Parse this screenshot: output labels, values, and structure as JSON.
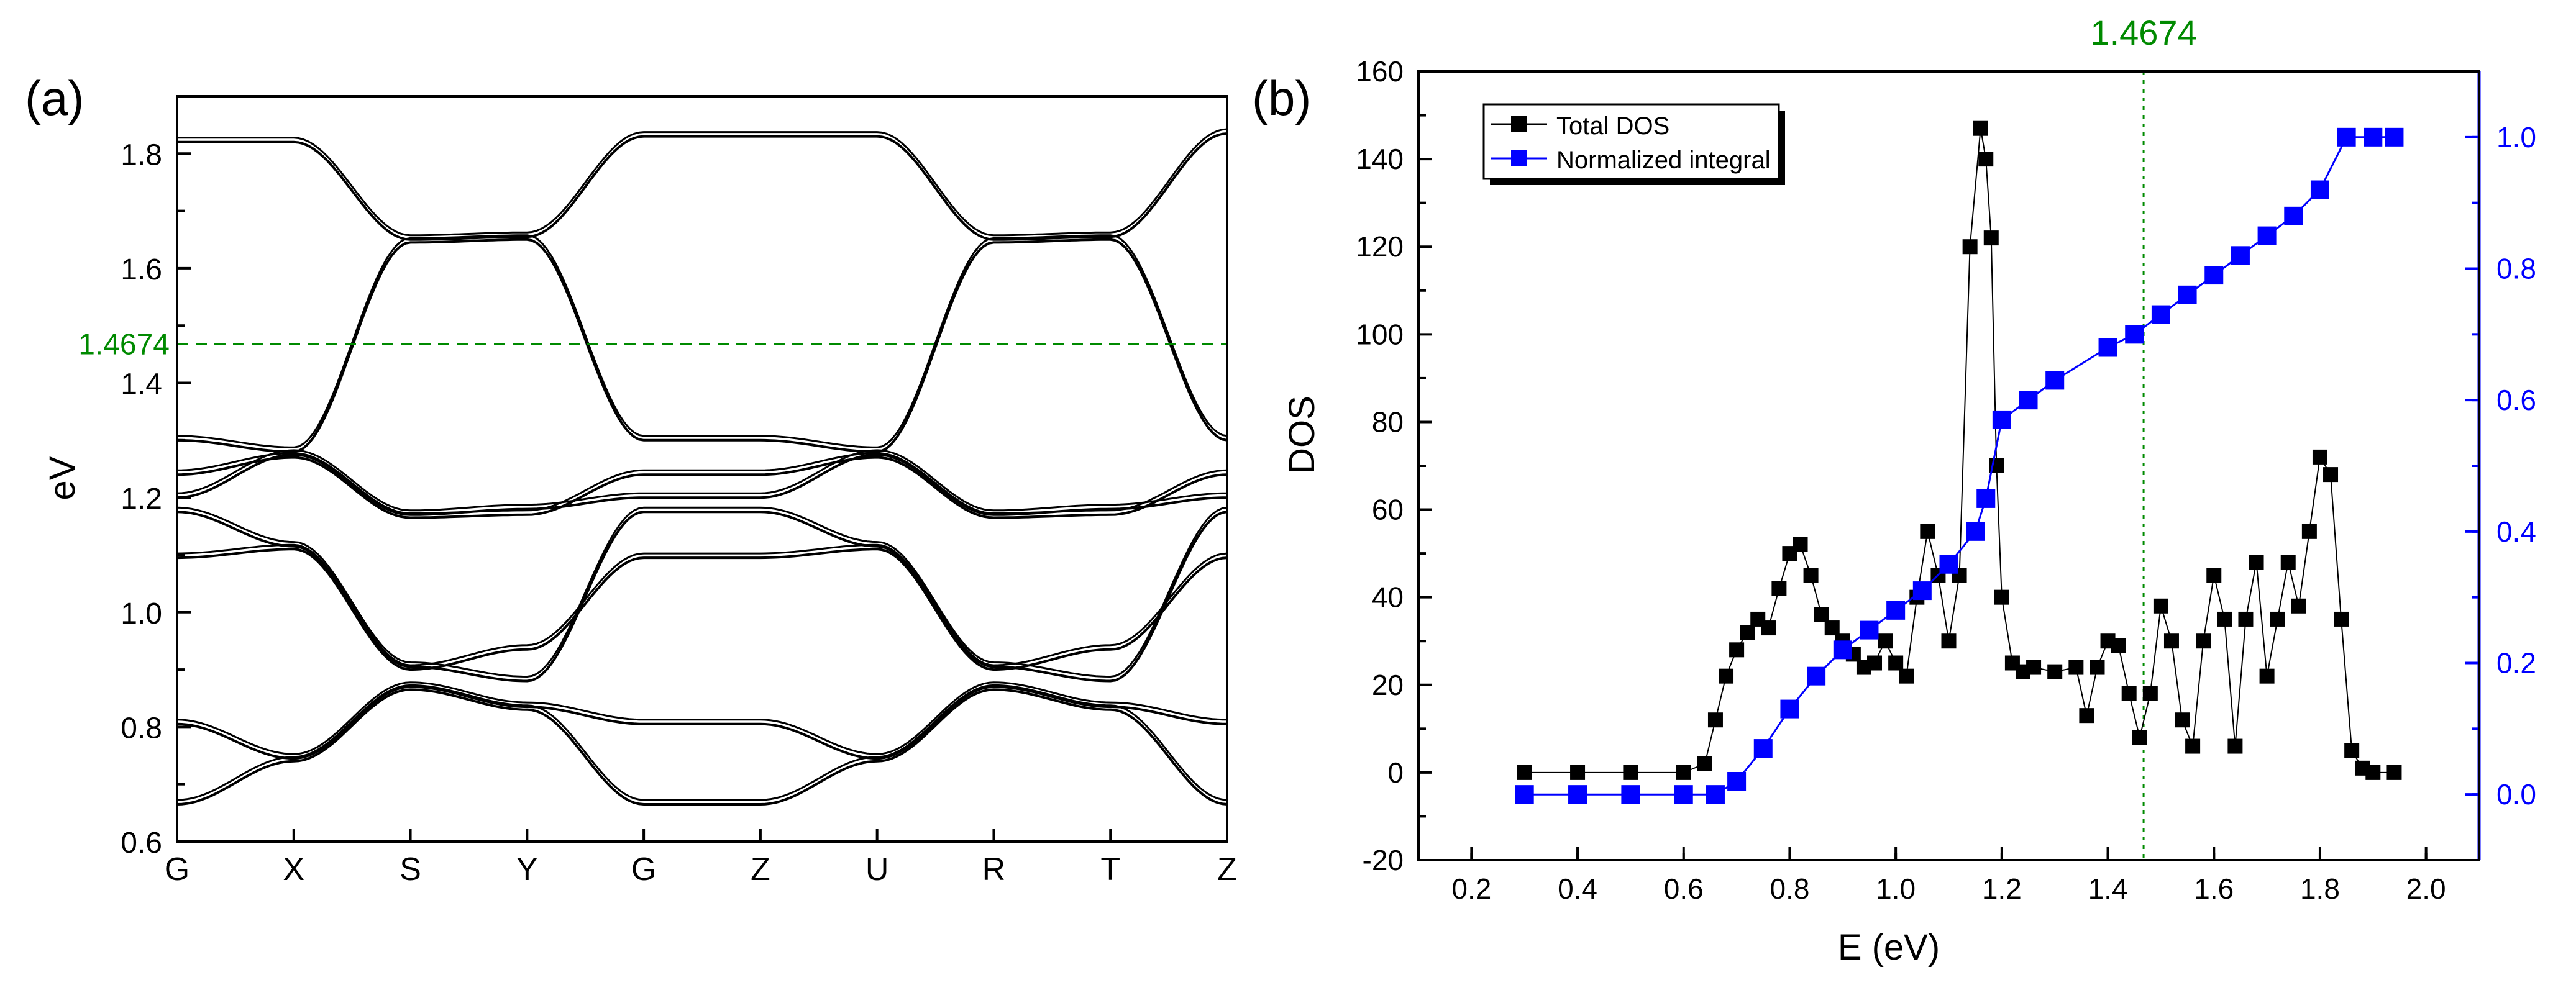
{
  "colors": {
    "axis": "#000000",
    "bands": "#000000",
    "total_dos": "#000000",
    "integral": "#0000ff",
    "fermi": "#008a00"
  },
  "chart_data": [
    {
      "panel_label": "(a)",
      "type": "line",
      "title": "",
      "xlabel": "",
      "ylabel": "eV",
      "x_ticks": [
        "G",
        "X",
        "S",
        "Y",
        "G",
        "Z",
        "U",
        "R",
        "T",
        "Z"
      ],
      "ylim": [
        0.6,
        1.9
      ],
      "y_ticks": [
        "0.6",
        "0.8",
        "1.0",
        "1.2",
        "1.4",
        "1.6",
        "1.8"
      ],
      "reference_line": {
        "label": "1.4674",
        "value": 1.4674,
        "style": "dashed"
      },
      "series": [
        {
          "name": "band 1",
          "values": [
            0.665,
            0.74,
            0.865,
            0.83,
            0.665,
            0.665,
            0.74,
            0.865,
            0.83,
            0.665
          ]
        },
        {
          "name": "band 2",
          "values": [
            0.805,
            0.745,
            0.87,
            0.835,
            0.805,
            0.805,
            0.745,
            0.87,
            0.835,
            0.805
          ]
        },
        {
          "name": "band 3",
          "values": [
            1.095,
            1.11,
            0.9,
            0.935,
            1.095,
            1.095,
            1.11,
            0.9,
            0.935,
            1.095
          ]
        },
        {
          "name": "band 4",
          "values": [
            1.175,
            1.115,
            0.905,
            0.88,
            1.175,
            1.175,
            1.115,
            0.905,
            0.88,
            1.175
          ]
        },
        {
          "name": "band 5",
          "values": [
            1.2,
            1.275,
            1.17,
            1.18,
            1.2,
            1.2,
            1.275,
            1.17,
            1.18,
            1.2
          ]
        },
        {
          "name": "band 6",
          "values": [
            1.24,
            1.27,
            1.165,
            1.17,
            1.24,
            1.24,
            1.27,
            1.165,
            1.17,
            1.24
          ]
        },
        {
          "name": "band 7",
          "values": [
            1.3,
            1.28,
            1.645,
            1.65,
            1.3,
            1.3,
            1.28,
            1.645,
            1.65,
            1.3
          ]
        },
        {
          "name": "band 8",
          "values": [
            1.82,
            1.82,
            1.65,
            1.655,
            1.83,
            1.83,
            1.83,
            1.65,
            1.655,
            1.835
          ]
        }
      ]
    },
    {
      "panel_label": "(b)",
      "type": "scatter",
      "title": "",
      "xlabel": "E (eV)",
      "ylabel": "DOS",
      "xlim": [
        0.1,
        2.1
      ],
      "x_ticks": [
        "0.2",
        "0.4",
        "0.6",
        "0.8",
        "1.0",
        "1.2",
        "1.4",
        "1.6",
        "1.8",
        "2.0"
      ],
      "ylim": [
        -20,
        160
      ],
      "y_ticks": [
        "-20",
        "0",
        "20",
        "40",
        "60",
        "80",
        "100",
        "120",
        "140",
        "160"
      ],
      "y2lim": [
        -0.1,
        1.1
      ],
      "y2_ticks": [
        "0.0",
        "0.2",
        "0.4",
        "0.6",
        "0.8",
        "1.0"
      ],
      "reference_line": {
        "label": "1.4674",
        "value": 1.4674,
        "style": "dotted"
      },
      "legend": {
        "position": "top-left",
        "entries": [
          "Total DOS",
          "Normalized integral"
        ]
      },
      "series": [
        {
          "name": "Total DOS",
          "axis": "left",
          "x": [
            0.3,
            0.4,
            0.5,
            0.6,
            0.64,
            0.66,
            0.68,
            0.7,
            0.72,
            0.74,
            0.76,
            0.78,
            0.8,
            0.82,
            0.84,
            0.86,
            0.88,
            0.9,
            0.92,
            0.94,
            0.96,
            0.98,
            1.0,
            1.02,
            1.04,
            1.06,
            1.08,
            1.1,
            1.12,
            1.14,
            1.16,
            1.17,
            1.18,
            1.19,
            1.2,
            1.22,
            1.24,
            1.26,
            1.3,
            1.34,
            1.36,
            1.38,
            1.4,
            1.42,
            1.44,
            1.46,
            1.48,
            1.5,
            1.52,
            1.54,
            1.56,
            1.58,
            1.6,
            1.62,
            1.64,
            1.66,
            1.68,
            1.7,
            1.72,
            1.74,
            1.76,
            1.78,
            1.8,
            1.82,
            1.84,
            1.86,
            1.88,
            1.9,
            1.94
          ],
          "values": [
            0,
            0,
            0,
            0,
            2,
            12,
            22,
            28,
            32,
            35,
            33,
            42,
            50,
            52,
            45,
            36,
            33,
            30,
            27,
            24,
            25,
            30,
            25,
            22,
            40,
            55,
            45,
            30,
            45,
            120,
            147,
            140,
            122,
            70,
            40,
            25,
            23,
            24,
            23,
            24,
            13,
            24,
            30,
            29,
            18,
            8,
            18,
            38,
            30,
            12,
            6,
            30,
            45,
            35,
            6,
            35,
            48,
            22,
            35,
            48,
            38,
            55,
            72,
            68,
            35,
            5,
            1,
            0,
            0
          ]
        },
        {
          "name": "Normalized integral",
          "axis": "right",
          "x": [
            0.3,
            0.4,
            0.5,
            0.6,
            0.66,
            0.7,
            0.75,
            0.8,
            0.85,
            0.9,
            0.95,
            1.0,
            1.05,
            1.1,
            1.15,
            1.17,
            1.2,
            1.25,
            1.3,
            1.4,
            1.45,
            1.5,
            1.55,
            1.6,
            1.65,
            1.7,
            1.75,
            1.8,
            1.85,
            1.9,
            1.94
          ],
          "values": [
            0.0,
            0.0,
            0.0,
            0.0,
            0.0,
            0.02,
            0.07,
            0.13,
            0.18,
            0.22,
            0.25,
            0.28,
            0.31,
            0.35,
            0.4,
            0.45,
            0.57,
            0.6,
            0.63,
            0.68,
            0.7,
            0.73,
            0.76,
            0.79,
            0.82,
            0.85,
            0.88,
            0.92,
            1.0,
            1.0,
            1.0
          ]
        }
      ]
    }
  ]
}
